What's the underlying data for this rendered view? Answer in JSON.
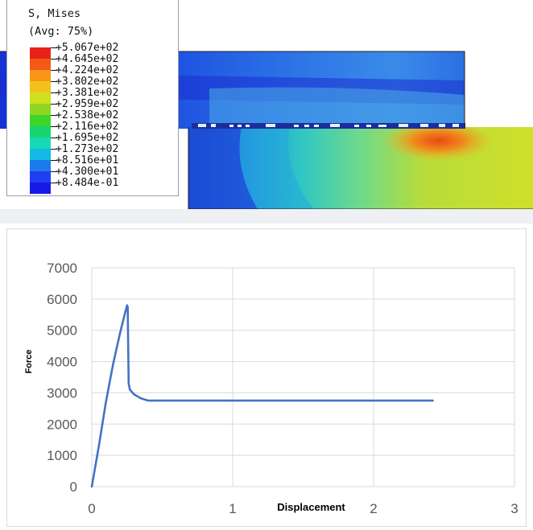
{
  "fea_panel": {
    "legend_title": "S, Mises",
    "legend_avg": "(Avg: 75%)",
    "legend_values": [
      "+5.067e+02",
      "+4.645e+02",
      "+4.224e+02",
      "+3.802e+02",
      "+3.381e+02",
      "+2.959e+02",
      "+2.538e+02",
      "+2.116e+02",
      "+1.695e+02",
      "+1.273e+02",
      "+8.516e+01",
      "+4.300e+01",
      "+8.484e-01"
    ],
    "legend_colors": [
      "#e8211b",
      "#f25a16",
      "#f89619",
      "#f2c21a",
      "#cfe01c",
      "#8ed621",
      "#3ed62a",
      "#18d66f",
      "#17d9b6",
      "#15b9e6",
      "#1b7bec",
      "#1f3ff0",
      "#1a1ae8"
    ]
  },
  "chart_data": {
    "type": "line",
    "xlabel": "Displacement",
    "ylabel": "Force",
    "xlim": [
      0,
      3
    ],
    "ylim": [
      0,
      7000
    ],
    "x_ticks": [
      "0",
      "1",
      "2",
      "3"
    ],
    "y_ticks": [
      "0",
      "1000",
      "2000",
      "3000",
      "4000",
      "5000",
      "6000",
      "7000"
    ],
    "grid": true,
    "legend": "none",
    "series": [
      {
        "color": "#4472c4",
        "x": [
          0,
          0.05,
          0.1,
          0.15,
          0.2,
          0.23,
          0.25,
          0.255,
          0.262,
          0.27,
          0.3,
          0.35,
          0.4,
          1.0,
          2.0,
          2.42
        ],
        "y": [
          0,
          1300,
          2700,
          3900,
          4900,
          5450,
          5800,
          5750,
          3300,
          3100,
          2950,
          2820,
          2750,
          2750,
          2750,
          2750
        ]
      }
    ]
  }
}
